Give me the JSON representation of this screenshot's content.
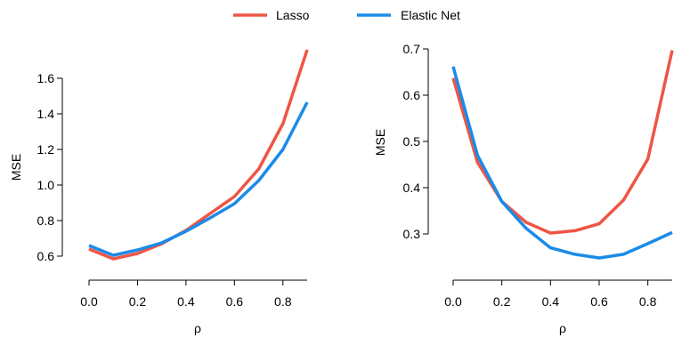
{
  "legend": {
    "position": "top-center",
    "items": [
      {
        "label": "Lasso",
        "color": "#EE5545"
      },
      {
        "label": "Elastic Net",
        "color": "#1A8BE8"
      }
    ]
  },
  "chart_data": [
    {
      "type": "line",
      "title": "",
      "xlabel": "ρ",
      "ylabel": "MSE",
      "grid": false,
      "xlim": [
        0,
        0.9
      ],
      "ylim": [
        0.58,
        1.76
      ],
      "xticks": [
        0.0,
        0.2,
        0.4,
        0.6,
        0.8
      ],
      "xtick_labels": [
        "0.0",
        "0.2",
        "0.4",
        "0.6",
        "0.8"
      ],
      "yticks": [
        0.6,
        0.8,
        1.0,
        1.2,
        1.4,
        1.6
      ],
      "ytick_labels": [
        "0.6",
        "0.8",
        "1.0",
        "1.2",
        "1.4",
        "1.6"
      ],
      "x": [
        0.0,
        0.1,
        0.2,
        0.3,
        0.4,
        0.5,
        0.6,
        0.7,
        0.8,
        0.9
      ],
      "series": [
        {
          "name": "Lasso",
          "color": "#EE5545",
          "values": [
            0.64,
            0.585,
            0.615,
            0.67,
            0.745,
            0.84,
            0.935,
            1.09,
            1.345,
            1.76
          ]
        },
        {
          "name": "Elastic Net",
          "color": "#1A8BE8",
          "values": [
            0.66,
            0.605,
            0.635,
            0.675,
            0.74,
            0.815,
            0.895,
            1.025,
            1.2,
            1.465
          ]
        }
      ]
    },
    {
      "type": "line",
      "title": "",
      "xlabel": "ρ",
      "ylabel": "MSE",
      "grid": false,
      "xlim": [
        0,
        0.9
      ],
      "ylim": [
        0.25,
        0.7
      ],
      "xticks": [
        0.0,
        0.2,
        0.4,
        0.6,
        0.8
      ],
      "xtick_labels": [
        "0.0",
        "0.2",
        "0.4",
        "0.6",
        "0.8"
      ],
      "yticks": [
        0.3,
        0.4,
        0.5,
        0.6,
        0.7
      ],
      "ytick_labels": [
        "0.3",
        "0.4",
        "0.5",
        "0.6",
        "0.7"
      ],
      "x": [
        0.0,
        0.1,
        0.2,
        0.3,
        0.4,
        0.5,
        0.6,
        0.7,
        0.8,
        0.9
      ],
      "series": [
        {
          "name": "Lasso",
          "color": "#EE5545",
          "values": [
            0.637,
            0.455,
            0.37,
            0.325,
            0.302,
            0.307,
            0.322,
            0.373,
            0.462,
            0.697
          ]
        },
        {
          "name": "Elastic Net",
          "color": "#1A8BE8",
          "values": [
            0.662,
            0.47,
            0.37,
            0.312,
            0.27,
            0.256,
            0.248,
            0.256,
            0.279,
            0.303
          ]
        }
      ]
    }
  ]
}
